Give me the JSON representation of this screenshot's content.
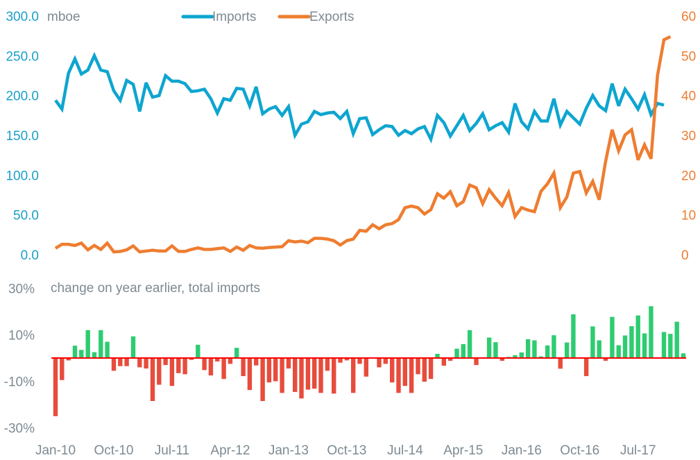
{
  "chart_data": [
    {
      "type": "line",
      "title": "",
      "unit_label": "mboe",
      "legend": [
        {
          "name": "Imports",
          "color": "#0ea5d0"
        },
        {
          "name": "Exports",
          "color": "#ee7d30"
        }
      ],
      "legend_placement": "top-center",
      "left_axis": {
        "ticks": [
          "300.0",
          "250.0",
          "200.0",
          "150.0",
          "100.0",
          "50.0",
          "0.0"
        ],
        "range": [
          0,
          300
        ],
        "color": "#1aa0c8"
      },
      "right_axis": {
        "ticks": [
          "60",
          "50",
          "40",
          "30",
          "20",
          "10",
          "0"
        ],
        "range": [
          0,
          60
        ],
        "color": "#ed7d31"
      },
      "x_start": "Jan-10",
      "x_labels": [
        "Jan-10",
        "Oct-10",
        "Jul-11",
        "Apr-12",
        "Jan-13",
        "Oct-13",
        "Jul-14",
        "Apr-15",
        "Jan-16",
        "Oct-16",
        "Jul-17"
      ],
      "series": [
        {
          "name": "Imports",
          "axis": "left",
          "values": [
            194,
            183,
            228,
            246,
            227,
            232,
            250,
            232,
            230,
            206,
            194,
            219,
            214,
            180,
            216,
            198,
            200,
            225,
            218,
            218,
            215,
            205,
            206,
            208,
            196,
            178,
            196,
            194,
            209,
            208,
            187,
            211,
            177,
            183,
            186,
            175,
            186,
            150,
            164,
            167,
            180,
            176,
            178,
            179,
            171,
            180,
            152,
            171,
            172,
            151,
            157,
            162,
            161,
            150,
            156,
            152,
            158,
            161,
            145,
            175,
            166,
            149,
            162,
            175,
            156,
            165,
            177,
            157,
            162,
            166,
            154,
            190,
            167,
            158,
            180,
            168,
            168,
            196,
            163,
            180,
            172,
            164,
            184,
            200,
            187,
            181,
            215,
            187,
            208,
            196,
            183,
            201,
            176,
            190,
            188
          ]
        },
        {
          "name": "Exports",
          "axis": "right",
          "values": [
            1.6,
            2.6,
            2.6,
            2.3,
            2.9,
            1.2,
            2.3,
            1.3,
            2.9,
            0.7,
            0.8,
            1.2,
            2.2,
            0.7,
            0.9,
            1.1,
            0.9,
            0.9,
            2.2,
            0.8,
            0.8,
            1.3,
            1.7,
            1.3,
            1.3,
            1.5,
            1.7,
            0.8,
            1.9,
            1.1,
            2.3,
            1.7,
            1.6,
            1.8,
            1.9,
            2.0,
            3.5,
            3.2,
            3.4,
            3.0,
            4.1,
            4.1,
            3.9,
            3.5,
            2.4,
            3.5,
            3.9,
            6.1,
            5.9,
            7.5,
            6.5,
            7.5,
            7.8,
            8.8,
            11.8,
            12.2,
            11.8,
            10.2,
            11.3,
            15.3,
            14.2,
            15.8,
            12.3,
            13.3,
            17.5,
            16.8,
            12.8,
            16.3,
            14.2,
            12.3,
            15.6,
            9.6,
            11.8,
            11.2,
            10.8,
            15.9,
            17.8,
            20.5,
            11.8,
            14.5,
            20.5,
            20.9,
            15.5,
            18.4,
            13.8,
            23.5,
            31.4,
            26.1,
            30.1,
            31.4,
            23.8,
            27.6,
            24.1,
            45.0,
            54.0,
            54.8
          ]
        }
      ]
    },
    {
      "type": "bar",
      "title": "change on year earlier, total imports",
      "y_ticks": [
        "30%",
        "10%",
        "-10%",
        "-30%"
      ],
      "ylim": [
        -30,
        30
      ],
      "positive_color": "#2ecc71",
      "negative_color": "#e74c3c",
      "zero_line_color": "#ff0000",
      "x_labels": [
        "Jan-10",
        "Oct-10",
        "Jul-11",
        "Apr-12",
        "Jan-13",
        "Oct-13",
        "Jul-14",
        "Apr-15",
        "Jan-16",
        "Oct-16",
        "Jul-17"
      ],
      "values": [
        -25,
        -9.5,
        -1,
        5.3,
        3.5,
        12,
        2.5,
        12,
        7,
        -5.5,
        -3.5,
        -3.5,
        9.3,
        -4,
        -4.5,
        -18.5,
        -11.5,
        -3,
        -12,
        -6.5,
        -7,
        -0.8,
        5.7,
        -5.2,
        -7.5,
        -1.5,
        -9,
        -2.5,
        4.4,
        -7.8,
        -13.8,
        -3.2,
        -18.5,
        -10.5,
        -10,
        -15,
        -4.5,
        -14.6,
        -17.4,
        -13.6,
        -13.2,
        -15,
        -5.5,
        -15.3,
        -2,
        -1,
        -15,
        -2.5,
        -8,
        -0.3,
        -4,
        -2.5,
        -10.5,
        -15,
        -12,
        -15,
        -7,
        -10.2,
        -9,
        1.8,
        -3.3,
        -1.2,
        4,
        6,
        12,
        -3,
        0.2,
        8.8,
        6.8,
        -1.2,
        0.5,
        1.2,
        2.4,
        8.1,
        7.6,
        0.7,
        5.4,
        9.8,
        -4.6,
        6.7,
        18.8,
        -0.2,
        -7.8,
        13.6,
        7.6,
        -1.2,
        17.7,
        5.5,
        9.7,
        13.7,
        18.3,
        10.6,
        22.3,
        0.3,
        11.2,
        10.4,
        15.6,
        2
      ]
    }
  ]
}
